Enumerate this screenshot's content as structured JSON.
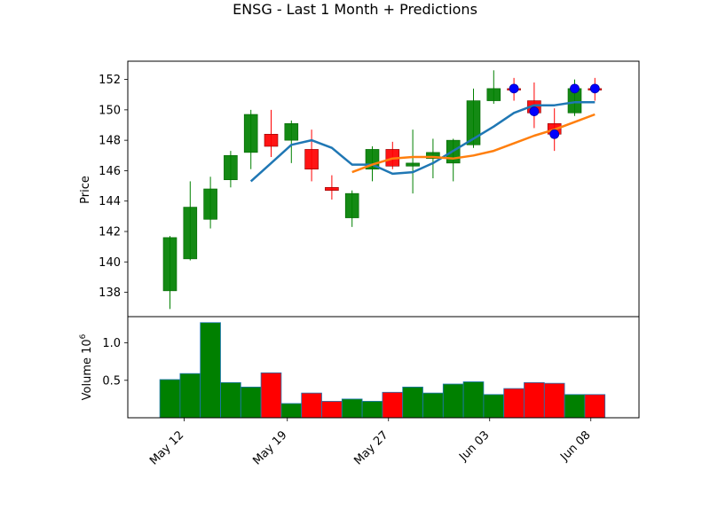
{
  "chart_data": {
    "type": "candlestick",
    "title": "ENSG - Last 1 Month + Predictions",
    "price_panel": {
      "ylabel": "Price",
      "ylim": [
        136.4,
        153.2
      ],
      "yticks": [
        138,
        140,
        142,
        144,
        146,
        148,
        150,
        152
      ],
      "candles": [
        {
          "o": 138.1,
          "h": 141.7,
          "l": 136.9,
          "c": 141.6
        },
        {
          "o": 140.2,
          "h": 145.3,
          "l": 140.1,
          "c": 143.6
        },
        {
          "o": 142.8,
          "h": 145.6,
          "l": 142.2,
          "c": 144.8
        },
        {
          "o": 145.4,
          "h": 147.3,
          "l": 144.9,
          "c": 147.0
        },
        {
          "o": 147.2,
          "h": 150.0,
          "l": 146.1,
          "c": 149.7
        },
        {
          "o": 148.4,
          "h": 150.0,
          "l": 146.9,
          "c": 147.6
        },
        {
          "o": 148.0,
          "h": 149.3,
          "l": 146.5,
          "c": 149.1
        },
        {
          "o": 147.4,
          "h": 148.7,
          "l": 145.3,
          "c": 146.1
        },
        {
          "o": 144.9,
          "h": 145.7,
          "l": 144.1,
          "c": 144.7
        },
        {
          "o": 142.9,
          "h": 144.7,
          "l": 142.3,
          "c": 144.5
        },
        {
          "o": 146.1,
          "h": 147.6,
          "l": 145.3,
          "c": 147.4
        },
        {
          "o": 147.4,
          "h": 147.9,
          "l": 146.1,
          "c": 146.3
        },
        {
          "o": 146.3,
          "h": 148.7,
          "l": 144.5,
          "c": 146.5
        },
        {
          "o": 146.8,
          "h": 148.1,
          "l": 145.5,
          "c": 147.2
        },
        {
          "o": 146.5,
          "h": 148.1,
          "l": 145.3,
          "c": 148.0
        },
        {
          "o": 147.7,
          "h": 151.4,
          "l": 147.5,
          "c": 150.6
        },
        {
          "o": 150.6,
          "h": 152.6,
          "l": 150.4,
          "c": 151.4
        },
        {
          "o": 151.4,
          "h": 152.1,
          "l": 150.6,
          "c": 151.3
        },
        {
          "o": 150.6,
          "h": 151.8,
          "l": 148.8,
          "c": 149.8
        },
        {
          "o": 149.1,
          "h": 150.1,
          "l": 147.3,
          "c": 148.4
        },
        {
          "o": 149.8,
          "h": 152.0,
          "l": 149.6,
          "c": 151.4
        },
        {
          "o": 151.4,
          "h": 152.1,
          "l": 150.6,
          "c": 151.3
        }
      ],
      "ma_short": {
        "color": "#1f77b4",
        "start_index": 4,
        "values": [
          145.3,
          146.5,
          147.7,
          148.0,
          147.5,
          146.4,
          146.4,
          145.8,
          145.9,
          146.5,
          147.3,
          148.1,
          148.9,
          149.8,
          150.3,
          150.3,
          150.5,
          150.5
        ]
      },
      "ma_long": {
        "color": "#ff7f0e",
        "start_index": 9,
        "values": [
          145.9,
          146.4,
          146.8,
          146.9,
          146.9,
          146.8,
          147.0,
          147.3,
          147.8,
          148.3,
          148.7,
          149.2,
          149.7
        ]
      },
      "predictions": {
        "color": "#0000ff",
        "points": [
          {
            "index": 17,
            "value": 151.4
          },
          {
            "index": 18,
            "value": 149.9
          },
          {
            "index": 19,
            "value": 148.4
          },
          {
            "index": 20,
            "value": 151.4
          },
          {
            "index": 21,
            "value": 151.4
          }
        ]
      }
    },
    "volume_panel": {
      "ylabel": "Volume",
      "ylabel_exponent": "10^6",
      "ylim": [
        0.0,
        1.35
      ],
      "yticks": [
        0.5,
        1.0
      ],
      "ytick_labels": [
        "0.5",
        "1.0"
      ],
      "values": [
        0.51,
        0.59,
        1.27,
        0.47,
        0.41,
        0.6,
        0.19,
        0.33,
        0.22,
        0.25,
        0.22,
        0.34,
        0.41,
        0.33,
        0.45,
        0.48,
        0.31,
        0.39,
        0.47,
        0.46,
        0.31,
        0.31
      ]
    },
    "x_axis": {
      "tick_indices": [
        0.7,
        5.8,
        10.8,
        15.8,
        20.8
      ],
      "tick_labels": [
        "May 12",
        "May 19",
        "May 27",
        "Jun 03",
        "Jun 08"
      ]
    },
    "colors": {
      "up": "#008000",
      "down": "#ff0000",
      "candle_edge_up": "#006400",
      "candle_edge_down": "#8b0000"
    }
  }
}
